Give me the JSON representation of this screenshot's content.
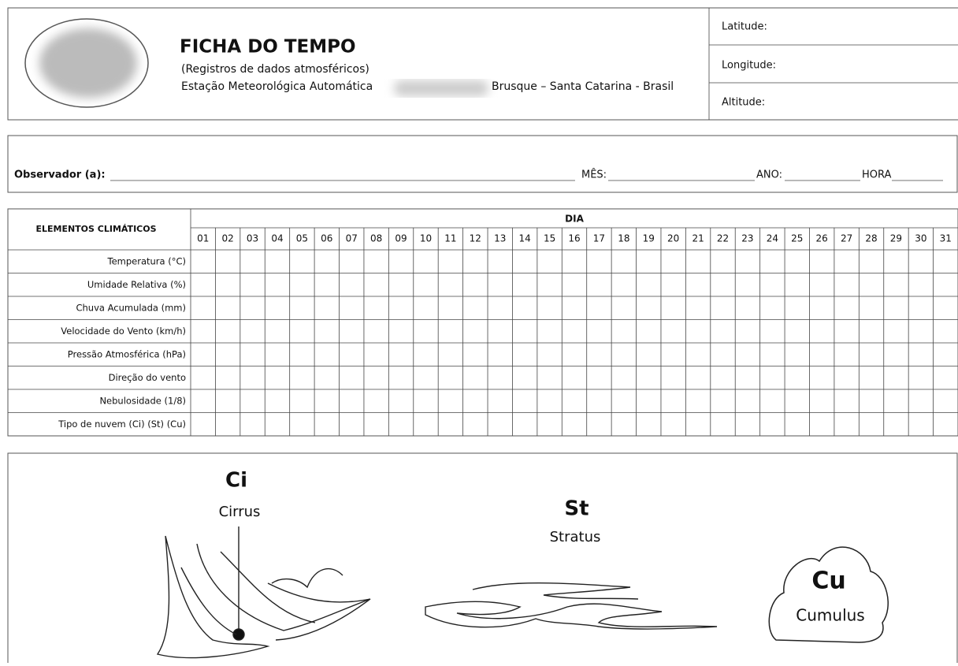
{
  "header": {
    "title": "FICHA DO TEMPO",
    "subtitle": "(Registros de dados atmosféricos)",
    "station": "Estação Meteorológica Automática",
    "location": "Brusque – Santa Catarina - Brasil",
    "fields": [
      "Latitude:",
      "Longitude:",
      "Altitude:"
    ]
  },
  "observer": {
    "observer": "Observador (a):",
    "month": "MÊS:",
    "year": "ANO:",
    "hour": "HORA"
  },
  "table": {
    "corner": "ELEMENTOS CLIMÁTICOS",
    "day_header": "DIA",
    "days": [
      "01",
      "02",
      "03",
      "04",
      "05",
      "06",
      "07",
      "08",
      "09",
      "10",
      "11",
      "12",
      "13",
      "14",
      "15",
      "16",
      "17",
      "18",
      "19",
      "20",
      "21",
      "22",
      "23",
      "24",
      "25",
      "26",
      "27",
      "28",
      "29",
      "30",
      "31"
    ],
    "rows": [
      "Temperatura (°C)",
      "Umidade Relativa (%)",
      "Chuva Acumulada (mm)",
      "Velocidade do Vento (km/h)",
      "Pressão Atmosférica (hPa)",
      "Direção do vento",
      "Nebulosidade (1/8)",
      "Tipo de nuvem (Ci) (St) (Cu)"
    ]
  },
  "clouds": [
    {
      "code": "Ci",
      "name": "Cirrus"
    },
    {
      "code": "St",
      "name": "Stratus"
    },
    {
      "code": "Cu",
      "name": "Cumulus"
    }
  ]
}
